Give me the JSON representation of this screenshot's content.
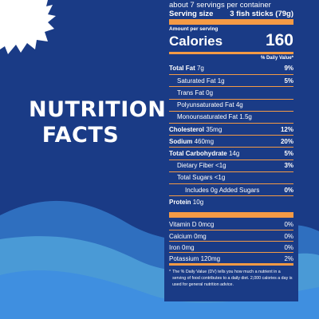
{
  "heading": {
    "line1": "NUTRITION",
    "line2": "FACTS"
  },
  "label": {
    "servings_per_container": "about 7 servings per container",
    "serving_size_label": "Serving size",
    "serving_size_value": "3 fish sticks (79g)",
    "amount_per_serving": "Amount per serving",
    "calories_label": "Calories",
    "calories_value": "160",
    "dv_header": "% Daily Value*",
    "rows": [
      {
        "name": "Total Fat",
        "amount": "7g",
        "pct": "9%",
        "bold": true,
        "indent": 0
      },
      {
        "name": "Saturated Fat",
        "amount": "1g",
        "pct": "5%",
        "bold": false,
        "indent": 1
      },
      {
        "name": "Trans Fat",
        "amount": "0g",
        "pct": "",
        "bold": false,
        "indent": 1
      },
      {
        "name": "Polyunsaturated Fat",
        "amount": "4g",
        "pct": "",
        "bold": false,
        "indent": 1
      },
      {
        "name": "Monounsaturated Fat",
        "amount": "1.5g",
        "pct": "",
        "bold": false,
        "indent": 1
      },
      {
        "name": "Cholesterol",
        "amount": "35mg",
        "pct": "12%",
        "bold": true,
        "indent": 0
      },
      {
        "name": "Sodium",
        "amount": "460mg",
        "pct": "20%",
        "bold": true,
        "indent": 0
      },
      {
        "name": "Total Carbohydrate",
        "amount": "14g",
        "pct": "5%",
        "bold": true,
        "indent": 0
      },
      {
        "name": "Dietary Fiber",
        "amount": "<1g",
        "pct": "3%",
        "bold": false,
        "indent": 1
      },
      {
        "name": "Total Sugars",
        "amount": "<1g",
        "pct": "",
        "bold": false,
        "indent": 1
      },
      {
        "name": "Includes 0g Added Sugars",
        "amount": "",
        "pct": "0%",
        "bold": false,
        "indent": 2
      },
      {
        "name": "Protein",
        "amount": "10g",
        "pct": "",
        "bold": true,
        "indent": 0
      }
    ],
    "vitamins": [
      {
        "name": "Vitamin D",
        "amount": "0mcg",
        "pct": "0%"
      },
      {
        "name": "Calcium",
        "amount": "0mg",
        "pct": "0%"
      },
      {
        "name": "Iron",
        "amount": "0mg",
        "pct": "0%"
      },
      {
        "name": "Potassium",
        "amount": "120mg",
        "pct": "2%"
      }
    ],
    "footnote": "The % Daily Value (DV) tells you how much a nutrient in a serving of food contributes to a daily diet. 2,000 calories a day is used for general nutrition advice."
  },
  "colors": {
    "background": "#1a3b86",
    "accent": "#f49a45",
    "wave_light": "#4a9ad6",
    "wave_mid": "#2f6fbf",
    "wave_bright": "#3f8fe0"
  }
}
